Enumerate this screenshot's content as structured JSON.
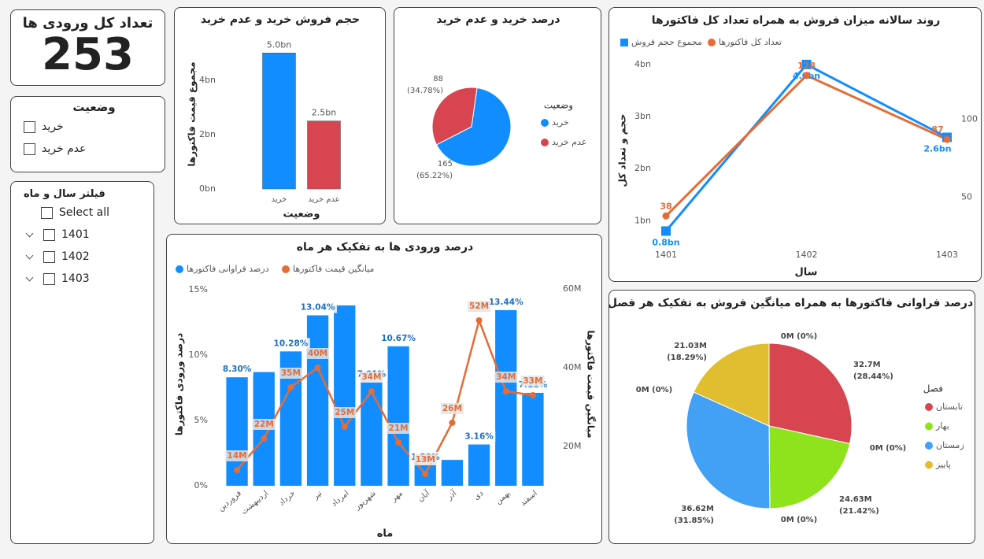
{
  "kpi": {
    "title": "تعداد کل ورودی ها",
    "value": 253
  },
  "status_filter": {
    "title": "وضعیت",
    "options": [
      "خرید",
      "عدم خرید"
    ]
  },
  "date_filter": {
    "title": "فیلتر سال و ماه",
    "select_all": "Select all",
    "options": [
      "1401",
      "1402",
      "1403"
    ]
  },
  "chart_data": [
    {
      "type": "bar",
      "title": "حجم فروش خرید و عدم خرید",
      "xlabel": "وضعیت",
      "ylabel": "مجموع قیمت فاکتورها",
      "categories": [
        "خرید",
        "عدم خرید"
      ],
      "values": [
        5.0,
        2.5
      ],
      "value_labels": [
        "5.0bn",
        "2.5bn"
      ],
      "colors": [
        "#118dff",
        "#d64550"
      ],
      "ylim": [
        0,
        5.5
      ],
      "yticks": [
        {
          "value": 0,
          "label": "0bn"
        },
        {
          "value": 2,
          "label": "2bn"
        },
        {
          "value": 4,
          "label": "4bn"
        }
      ]
    },
    {
      "type": "pie",
      "title": "درصد خرید و عدم خرید",
      "legend_title": "وضعیت",
      "categories": [
        "خرید",
        "عدم خرید"
      ],
      "values": [
        165,
        88
      ],
      "percent_labels": [
        "(65.22%)",
        "(34.78%)"
      ],
      "colors": [
        "#118dff",
        "#d64550"
      ]
    },
    {
      "type": "line",
      "title": "روند سالانه میزان فروش به همراه تعداد کل فاکتورها",
      "xlabel": "سال",
      "ylabel": "حجم و تعداد کل",
      "categories": [
        "1401",
        "1402",
        "1403"
      ],
      "series": [
        {
          "name": "مجموع حجم فروش",
          "color": "#118dff",
          "values": [
            0.8,
            4.0,
            2.6
          ],
          "value_labels": [
            "0.8bn",
            "4.0bn",
            "2.6bn"
          ]
        },
        {
          "name": "تعداد کل فاکتورها",
          "color": "#e66c37",
          "axis": "y2",
          "values": [
            38,
            128,
            87
          ]
        }
      ],
      "ylim": [
        0.55,
        4.15
      ],
      "yticks": [
        {
          "value": 1,
          "label": "1bn"
        },
        {
          "value": 2,
          "label": "2bn"
        },
        {
          "value": 3,
          "label": "3bn"
        },
        {
          "value": 4,
          "label": "4bn"
        }
      ],
      "y2lim": [
        20,
        140
      ],
      "y2ticks": [
        50,
        100
      ]
    },
    {
      "type": "bar_line",
      "title": "درصد ورودی ها به تفکیک هر ماه",
      "xlabel": "ماه",
      "ylabel": "درصد ورودی فاکتورها",
      "y2label": "میانگین قیمت فاکتورها",
      "categories": [
        "فروردین",
        "اردیبهشت",
        "خرداد",
        "تیر",
        "امرداد",
        "شهریور",
        "مهر",
        "آبان",
        "آذر",
        "دی",
        "بهمن",
        "اسفند"
      ],
      "series": [
        {
          "name": "درصد فراوانی فاکتورها",
          "color": "#118dff",
          "kind": "bar",
          "values": [
            8.3,
            8.7,
            10.28,
            13.04,
            13.8,
            7.91,
            10.67,
            1.58,
            1.98,
            3.16,
            13.44,
            7.11
          ],
          "value_labels": [
            "8.30%",
            null,
            "10.28%",
            "13.04%",
            null,
            "7.91%",
            "10.67%",
            "1.58%",
            null,
            "3.16%",
            "13.44%",
            "7.11%"
          ]
        },
        {
          "name": "میانگین قیمت فاکتورها",
          "color": "#e66c37",
          "kind": "line",
          "axis": "y2",
          "values": [
            14,
            22,
            35,
            40,
            25,
            34,
            21,
            13,
            26,
            52,
            34,
            33
          ],
          "value_labels": [
            "14M",
            "22M",
            "35M",
            "40M",
            "25M",
            "34M",
            "21M",
            "13M",
            "26M",
            "52M",
            "34M",
            "33M"
          ]
        }
      ],
      "ylim": [
        0,
        15.3
      ],
      "yticks": [
        {
          "value": 0,
          "label": "0%"
        },
        {
          "value": 5,
          "label": "5%"
        },
        {
          "value": 10,
          "label": "10%"
        },
        {
          "value": 15,
          "label": "15%"
        }
      ],
      "y2lim": [
        10,
        60.8
      ],
      "y2ticks": [
        {
          "value": 20,
          "label": "20M"
        },
        {
          "value": 40,
          "label": "40M"
        },
        {
          "value": 60,
          "label": "60M"
        }
      ]
    },
    {
      "type": "pie",
      "title": "درصد فراوانی فاکتورها به همراه میانگین فروش به تفکیک هر فصل",
      "legend_title": "فصل",
      "categories": [
        "تابستان",
        "بهار",
        "زمستان",
        "پاییز"
      ],
      "values": [
        32.7,
        24.63,
        36.62,
        21.03
      ],
      "value_labels": [
        "32.7M",
        "24.63M",
        "36.62M",
        "21.03M"
      ],
      "percent_labels": [
        "(28.44%)",
        "(21.42%)",
        "(31.85%)",
        "(18.29%)"
      ],
      "colors": [
        "#d64550",
        "#8fe31c",
        "#42a0f5",
        "#e0be30"
      ],
      "annotations": [
        "0M (0%)",
        "0M (0%)",
        "0M (0%)",
        "0M (0%)"
      ]
    }
  ]
}
